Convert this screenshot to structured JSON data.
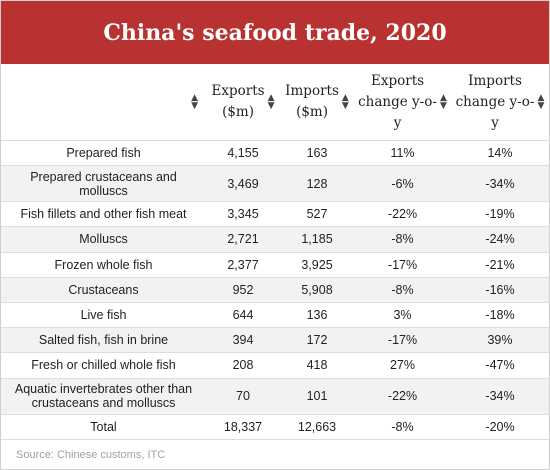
{
  "title": "China's seafood trade, 2020",
  "headers": {
    "exports": [
      "Exports",
      "($m)"
    ],
    "imports": [
      "Imports",
      "($m)"
    ],
    "exports_change": [
      "Exports",
      "change y-o-",
      "y"
    ],
    "imports_change": [
      "Imports",
      "change y-o-",
      "y"
    ]
  },
  "sort_icon": "sort-arrows-icon",
  "rows": [
    {
      "name": "Prepared fish",
      "exports": "4,155",
      "imports": "163",
      "exp_chg": "11%",
      "imp_chg": "14%"
    },
    {
      "name": "Prepared crustaceans and molluscs",
      "exports": "3,469",
      "imports": "128",
      "exp_chg": "-6%",
      "imp_chg": "-34%"
    },
    {
      "name": "Fish fillets and other fish meat",
      "exports": "3,345",
      "imports": "527",
      "exp_chg": "-22%",
      "imp_chg": "-19%"
    },
    {
      "name": "Molluscs",
      "exports": "2,721",
      "imports": "1,185",
      "exp_chg": "-8%",
      "imp_chg": "-24%"
    },
    {
      "name": "Frozen whole fish",
      "exports": "2,377",
      "imports": "3,925",
      "exp_chg": "-17%",
      "imp_chg": "-21%"
    },
    {
      "name": "Crustaceans",
      "exports": "952",
      "imports": "5,908",
      "exp_chg": "-8%",
      "imp_chg": "-16%"
    },
    {
      "name": "Live fish",
      "exports": "644",
      "imports": "136",
      "exp_chg": "3%",
      "imp_chg": "-18%"
    },
    {
      "name": "Salted fish, fish in brine",
      "exports": "394",
      "imports": "172",
      "exp_chg": "-17%",
      "imp_chg": "39%"
    },
    {
      "name": "Fresh or chilled whole fish",
      "exports": "208",
      "imports": "418",
      "exp_chg": "27%",
      "imp_chg": "-47%"
    },
    {
      "name": "Aquatic invertebrates other than crustaceans and molluscs",
      "exports": "70",
      "imports": "101",
      "exp_chg": "-22%",
      "imp_chg": "-34%"
    },
    {
      "name": "Total",
      "exports": "18,337",
      "imports": "12,663",
      "exp_chg": "-8%",
      "imp_chg": "-20%"
    }
  ],
  "source": "Source: Chinese customs, ITC"
}
